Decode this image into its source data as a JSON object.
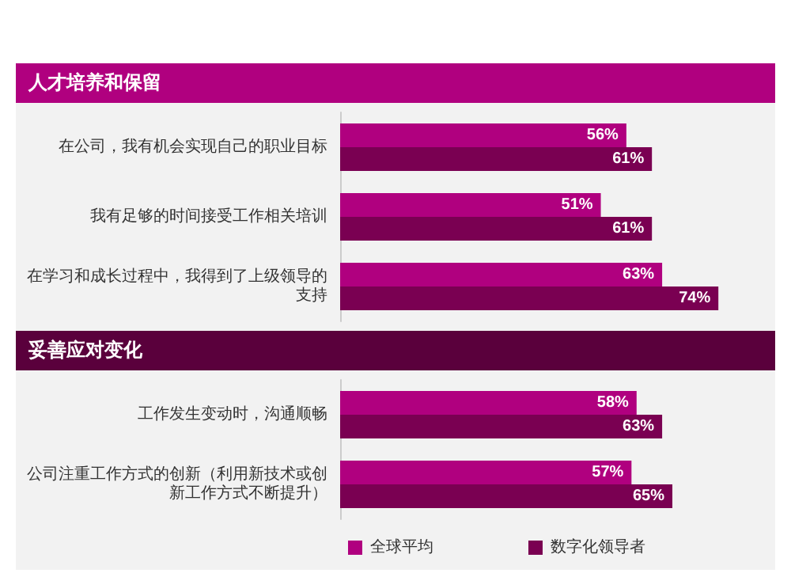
{
  "chart_data": [
    {
      "type": "bar",
      "orientation": "horizontal",
      "title": "人才培养和保留",
      "categories": [
        "在公司，我有机会实现自己的职业目标",
        "我有足够的时间接受工作相关培训",
        "在学习和成长过程中，我得到了上级领导的支持"
      ],
      "series": [
        {
          "color": "#b0007f",
          "values": [
            56,
            51,
            63
          ],
          "value_labels": [
            "56%",
            "51%",
            "63%"
          ]
        },
        {
          "color": "#7a0052",
          "values": [
            61,
            61,
            74
          ],
          "value_labels": [
            "61%",
            "61%",
            "74%"
          ]
        }
      ],
      "tick_labels": "y",
      "legend": false
    },
    {
      "type": "bar",
      "orientation": "horizontal",
      "title": "妥善应对变化",
      "categories": [
        "工作发生变动时，沟通顺畅",
        "公司注重工作方式的创新（利用新技术或创新工作方式不断提升）"
      ],
      "series": [
        {
          "name": "全球平均",
          "color": "#b0007f",
          "values": [
            58,
            57
          ],
          "value_labels": [
            "58%",
            "57%"
          ]
        },
        {
          "name": "数字化领导者",
          "color": "#7a0052",
          "values": [
            63,
            65
          ],
          "value_labels": [
            "63%",
            "65%"
          ]
        }
      ],
      "tick_labels": "y",
      "legend": "bottom left"
    }
  ]
}
